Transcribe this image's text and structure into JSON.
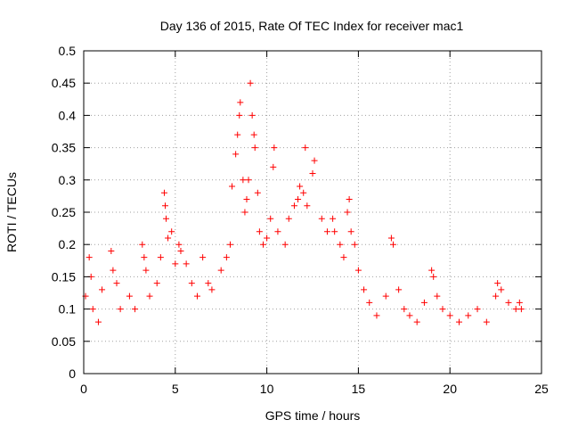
{
  "chart_data": {
    "type": "scatter",
    "title": "Day 136 of 2015, Rate Of TEC Index for receiver mac1",
    "xlabel": "GPS time / hours",
    "ylabel": "ROTI / TECUs",
    "xlim": [
      0,
      25
    ],
    "ylim": [
      0,
      0.5
    ],
    "xticks": [
      0,
      5,
      10,
      15,
      20,
      25
    ],
    "yticks": [
      0,
      0.05,
      0.1,
      0.15,
      0.2,
      0.25,
      0.3,
      0.35,
      0.4,
      0.45,
      0.5
    ],
    "xtick_labels": [
      "0",
      "5",
      "10",
      "15",
      "20",
      "25"
    ],
    "ytick_labels": [
      "0",
      "0.05",
      "0.1",
      "0.15",
      "0.2",
      "0.25",
      "0.3",
      "0.35",
      "0.4",
      "0.45",
      "0.5"
    ],
    "grid": true,
    "marker": "plus",
    "color": "#ff0000",
    "series": [
      {
        "name": "ROTI",
        "points": [
          [
            0.1,
            0.12
          ],
          [
            0.3,
            0.18
          ],
          [
            0.4,
            0.15
          ],
          [
            0.5,
            0.1
          ],
          [
            0.8,
            0.08
          ],
          [
            1.0,
            0.13
          ],
          [
            1.5,
            0.19
          ],
          [
            1.6,
            0.16
          ],
          [
            1.8,
            0.14
          ],
          [
            2.0,
            0.1
          ],
          [
            2.5,
            0.12
          ],
          [
            2.8,
            0.1
          ],
          [
            3.2,
            0.2
          ],
          [
            3.3,
            0.18
          ],
          [
            3.4,
            0.16
          ],
          [
            3.6,
            0.12
          ],
          [
            4.0,
            0.14
          ],
          [
            4.2,
            0.18
          ],
          [
            4.4,
            0.28
          ],
          [
            4.45,
            0.26
          ],
          [
            4.5,
            0.24
          ],
          [
            4.6,
            0.21
          ],
          [
            4.8,
            0.22
          ],
          [
            5.0,
            0.17
          ],
          [
            5.2,
            0.2
          ],
          [
            5.3,
            0.19
          ],
          [
            5.6,
            0.17
          ],
          [
            5.9,
            0.14
          ],
          [
            6.2,
            0.12
          ],
          [
            6.5,
            0.18
          ],
          [
            6.8,
            0.14
          ],
          [
            7.0,
            0.13
          ],
          [
            7.5,
            0.16
          ],
          [
            7.8,
            0.18
          ],
          [
            8.0,
            0.2
          ],
          [
            8.1,
            0.29
          ],
          [
            8.3,
            0.34
          ],
          [
            8.4,
            0.37
          ],
          [
            8.5,
            0.4
          ],
          [
            8.55,
            0.42
          ],
          [
            8.7,
            0.3
          ],
          [
            8.8,
            0.25
          ],
          [
            8.9,
            0.27
          ],
          [
            9.0,
            0.3
          ],
          [
            9.1,
            0.45
          ],
          [
            9.2,
            0.4
          ],
          [
            9.3,
            0.37
          ],
          [
            9.35,
            0.35
          ],
          [
            9.5,
            0.28
          ],
          [
            9.6,
            0.22
          ],
          [
            9.8,
            0.2
          ],
          [
            10.0,
            0.21
          ],
          [
            10.2,
            0.24
          ],
          [
            10.35,
            0.32
          ],
          [
            10.4,
            0.35
          ],
          [
            10.6,
            0.22
          ],
          [
            11.0,
            0.2
          ],
          [
            11.2,
            0.24
          ],
          [
            11.5,
            0.26
          ],
          [
            11.7,
            0.27
          ],
          [
            11.8,
            0.29
          ],
          [
            12.0,
            0.28
          ],
          [
            12.1,
            0.35
          ],
          [
            12.2,
            0.26
          ],
          [
            12.5,
            0.31
          ],
          [
            12.6,
            0.33
          ],
          [
            13.0,
            0.24
          ],
          [
            13.3,
            0.22
          ],
          [
            13.6,
            0.24
          ],
          [
            13.7,
            0.22
          ],
          [
            14.0,
            0.2
          ],
          [
            14.2,
            0.18
          ],
          [
            14.4,
            0.25
          ],
          [
            14.5,
            0.27
          ],
          [
            14.6,
            0.22
          ],
          [
            14.8,
            0.2
          ],
          [
            15.0,
            0.16
          ],
          [
            15.3,
            0.13
          ],
          [
            15.6,
            0.11
          ],
          [
            16.0,
            0.09
          ],
          [
            16.5,
            0.12
          ],
          [
            16.8,
            0.21
          ],
          [
            16.9,
            0.2
          ],
          [
            17.2,
            0.13
          ],
          [
            17.5,
            0.1
          ],
          [
            17.8,
            0.09
          ],
          [
            18.2,
            0.08
          ],
          [
            18.6,
            0.11
          ],
          [
            19.0,
            0.16
          ],
          [
            19.1,
            0.15
          ],
          [
            19.3,
            0.12
          ],
          [
            19.6,
            0.1
          ],
          [
            20.0,
            0.09
          ],
          [
            20.5,
            0.08
          ],
          [
            21.0,
            0.09
          ],
          [
            21.5,
            0.1
          ],
          [
            22.0,
            0.08
          ],
          [
            22.5,
            0.12
          ],
          [
            22.6,
            0.14
          ],
          [
            22.8,
            0.13
          ],
          [
            23.2,
            0.11
          ],
          [
            23.6,
            0.1
          ],
          [
            23.8,
            0.11
          ],
          [
            23.9,
            0.1
          ]
        ]
      }
    ]
  }
}
